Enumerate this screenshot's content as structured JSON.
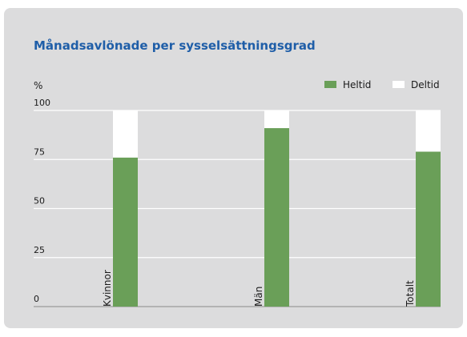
{
  "chart_data": {
    "type": "stacked_bar",
    "title": "Månadsavlönade per sysselsättningsgrad",
    "y_label": "%",
    "categories": [
      "Kvinnor",
      "Män",
      "Totalt"
    ],
    "series": [
      {
        "name": "Heltid",
        "color": "#6a9f58",
        "values": [
          76,
          91,
          79
        ]
      },
      {
        "name": "Deltid",
        "color": "#ffffff",
        "values": [
          24,
          9,
          21
        ]
      }
    ],
    "ylim": [
      0,
      100
    ],
    "yticks": [
      0,
      25,
      50,
      75,
      100
    ],
    "grid": true,
    "legend": "top-right"
  }
}
